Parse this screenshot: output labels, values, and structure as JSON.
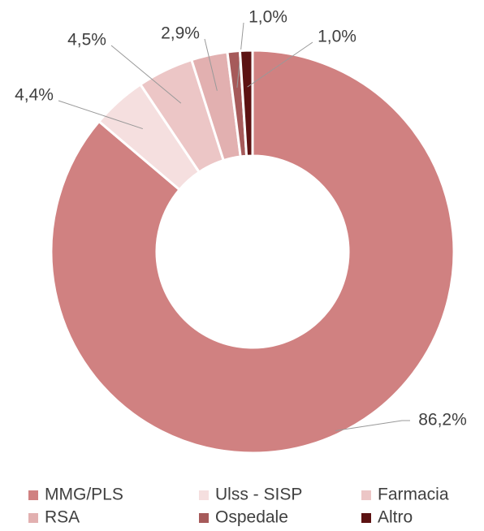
{
  "chart_data": {
    "type": "donut",
    "categories": [
      "MMG/PLS",
      "Ulss - SISP",
      "Farmacia",
      "RSA",
      "Ospedale",
      "Altro"
    ],
    "values": [
      86.2,
      4.4,
      4.5,
      2.9,
      1.0,
      1.0
    ],
    "value_labels": [
      "86,2%",
      "4,4%",
      "4,5%",
      "2,9%",
      "1,0%",
      "1,0%"
    ],
    "colors": [
      "#d08181",
      "#f5dfdf",
      "#ecc6c6",
      "#e2b0b0",
      "#a65a5a",
      "#5c1212"
    ],
    "legend": "bottom"
  }
}
